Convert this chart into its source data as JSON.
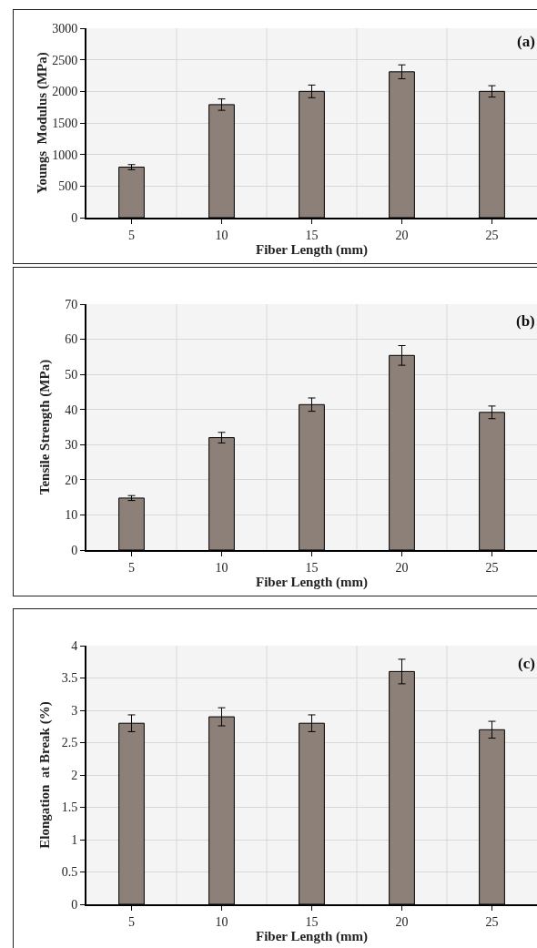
{
  "chart_data": [
    {
      "type": "bar",
      "categories": [
        "5",
        "10",
        "15",
        "20",
        "25"
      ],
      "values": [
        800,
        1790,
        2000,
        2310,
        2000
      ],
      "errors": [
        40,
        90,
        100,
        110,
        90
      ],
      "color": "#8c8078",
      "xlabel": "Fiber Length (mm)",
      "ylabel": "Youngs  Modulus (MPa)",
      "ylim": [
        0,
        3000
      ],
      "yticks": [
        0,
        500,
        1000,
        1500,
        2000,
        2500,
        3000
      ],
      "grid": true,
      "annotations": [
        "(a)"
      ]
    },
    {
      "type": "bar",
      "categories": [
        "5",
        "10",
        "15",
        "20",
        "25"
      ],
      "values": [
        14.8,
        32,
        41.4,
        55.4,
        39.2
      ],
      "errors": [
        0.7,
        1.5,
        1.9,
        2.8,
        1.8
      ],
      "color": "#8c8078",
      "xlabel": "Fiber Length (mm)",
      "ylabel": "Tensile Strength (MPa)",
      "ylim": [
        0,
        70
      ],
      "yticks": [
        0,
        10,
        20,
        30,
        40,
        50,
        60,
        70
      ],
      "grid": true,
      "annotations": [
        "(b)"
      ]
    },
    {
      "type": "bar",
      "categories": [
        "5",
        "10",
        "15",
        "20",
        "25"
      ],
      "values": [
        2.8,
        2.9,
        2.8,
        3.6,
        2.7
      ],
      "errors": [
        0.13,
        0.14,
        0.13,
        0.19,
        0.13
      ],
      "color": "#8c8078",
      "xlabel": "Fiber Length (mm)",
      "ylabel": "Elongation  at Break (%)",
      "ylim": [
        0,
        4
      ],
      "yticks": [
        0,
        {
          "value": 0.5,
          "label": "0.5"
        },
        1,
        1.5,
        2,
        2.5,
        3,
        3.5,
        4
      ],
      "grid": true,
      "annotations": [
        "(c)"
      ]
    }
  ]
}
